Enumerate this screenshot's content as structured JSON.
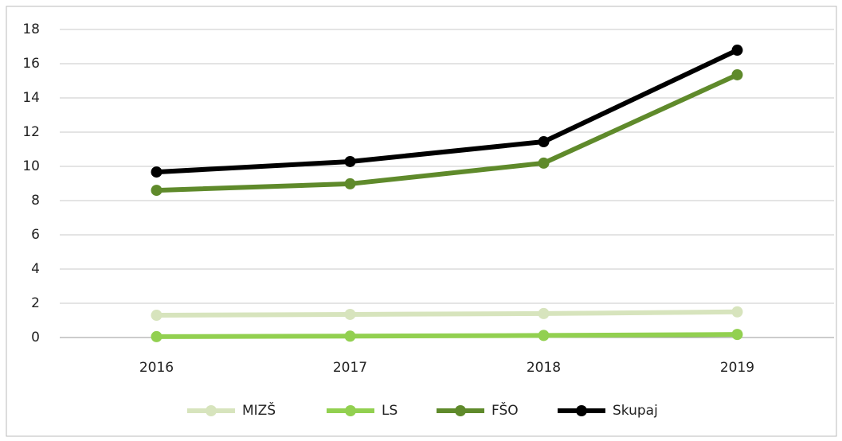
{
  "chart_data": {
    "type": "line",
    "categories": [
      "2016",
      "2017",
      "2018",
      "2019"
    ],
    "series": [
      {
        "name": "MIZŠ",
        "color": "#d7e4bd",
        "values": [
          1.3,
          1.35,
          1.4,
          1.5
        ]
      },
      {
        "name": "LS",
        "color": "#92d050",
        "values": [
          0.05,
          0.08,
          0.12,
          0.18
        ]
      },
      {
        "name": "FŠO",
        "color": "#5f8a2b",
        "values": [
          8.6,
          8.98,
          10.19,
          15.35
        ]
      },
      {
        "name": "Skupaj",
        "color": "#000000",
        "values": [
          9.67,
          10.28,
          11.44,
          16.79
        ]
      }
    ],
    "ylim": [
      0,
      18
    ],
    "yticks": [
      0,
      2,
      4,
      6,
      8,
      10,
      12,
      14,
      16,
      18
    ],
    "grid": true,
    "legend": "bottom"
  }
}
